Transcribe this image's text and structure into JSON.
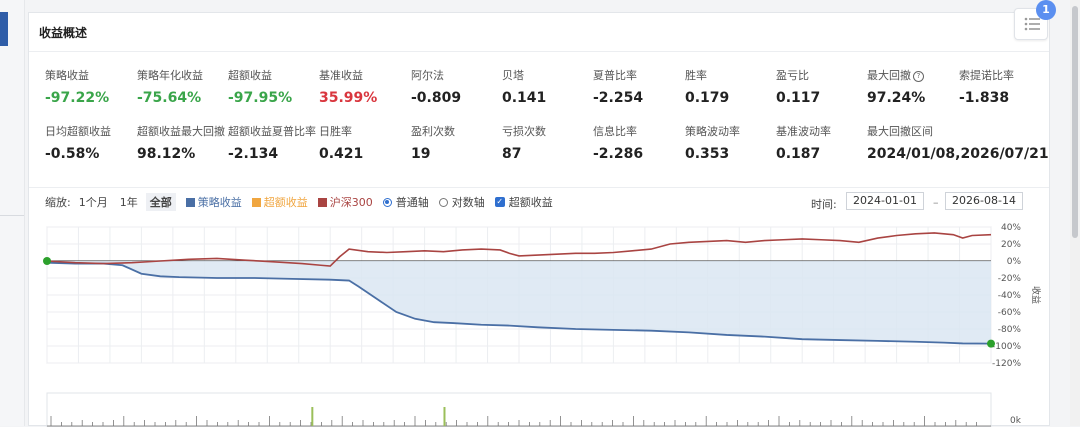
{
  "panel": {
    "title": "收益概述"
  },
  "metrics_row1": [
    {
      "label": "策略收益",
      "value": "-97.22%",
      "tone": "green"
    },
    {
      "label": "策略年化收益",
      "value": "-75.64%",
      "tone": "green"
    },
    {
      "label": "超额收益",
      "value": "-97.95%",
      "tone": "green"
    },
    {
      "label": "基准收益",
      "value": "35.99%",
      "tone": "red"
    },
    {
      "label": "阿尔法",
      "value": "-0.809",
      "tone": ""
    },
    {
      "label": "贝塔",
      "value": "0.141",
      "tone": ""
    },
    {
      "label": "夏普比率",
      "value": "-2.254",
      "tone": ""
    },
    {
      "label": "胜率",
      "value": "0.179",
      "tone": ""
    },
    {
      "label": "盈亏比",
      "value": "0.117",
      "tone": ""
    },
    {
      "label": "最大回撤",
      "value": "97.24%",
      "tone": "",
      "help": true
    },
    {
      "label": "索提诺比率",
      "value": "-1.838",
      "tone": ""
    }
  ],
  "metrics_row2": [
    {
      "label": "日均超额收益",
      "value": "-0.58%"
    },
    {
      "label": "超额收益最大回撤",
      "value": "98.12%"
    },
    {
      "label": "超额收益夏普比率",
      "value": "-2.134"
    },
    {
      "label": "日胜率",
      "value": "0.421"
    },
    {
      "label": "盈利次数",
      "value": "19"
    },
    {
      "label": "亏损次数",
      "value": "87"
    },
    {
      "label": "信息比率",
      "value": "-2.286"
    },
    {
      "label": "策略波动率",
      "value": "0.353"
    },
    {
      "label": "基准波动率",
      "value": "0.187"
    },
    {
      "label": "最大回撤区间",
      "value": "2024/01/08,2026/07/21"
    }
  ],
  "toolbar": {
    "zoom_label": "缩放:",
    "zoom_1m": "1个月",
    "zoom_1y": "1年",
    "zoom_all": "全部",
    "legend_strategy": "策略收益",
    "legend_excess": "超额收益",
    "legend_benchmark": "沪深300",
    "axis_normal": "普通轴",
    "axis_log": "对数轴",
    "excess_toggle": "超额收益",
    "time_label": "时间:",
    "date_start": "2024-01-01",
    "date_end": "2026-08-14"
  },
  "badge": {
    "count": "1"
  },
  "colors": {
    "strategy": "#4a6fa5",
    "excess": "#f0a640",
    "benchmark": "#a94442",
    "accent": "#2f6fcf"
  },
  "chart_data": {
    "type": "line",
    "y_ticks": [
      "40%",
      "20%",
      "0%",
      "-20%",
      "-40%",
      "-60%",
      "-80%",
      "-100%",
      "-120%"
    ],
    "ylim": [
      -120,
      40
    ],
    "ylabel": "收益",
    "xlim": [
      0,
      100
    ],
    "series": [
      {
        "name": "沪深300",
        "points": [
          [
            0,
            0
          ],
          [
            3,
            -2
          ],
          [
            6,
            -3
          ],
          [
            9,
            -2
          ],
          [
            12,
            0
          ],
          [
            15,
            2
          ],
          [
            18,
            3
          ],
          [
            21,
            1
          ],
          [
            24,
            -1
          ],
          [
            27,
            -3
          ],
          [
            29,
            -5
          ],
          [
            30,
            -6
          ],
          [
            31,
            5
          ],
          [
            32,
            14
          ],
          [
            34,
            11
          ],
          [
            36,
            10
          ],
          [
            38,
            11
          ],
          [
            40,
            12
          ],
          [
            42,
            11
          ],
          [
            44,
            13
          ],
          [
            46,
            14
          ],
          [
            48,
            13
          ],
          [
            49,
            9
          ],
          [
            50,
            6
          ],
          [
            52,
            7
          ],
          [
            54,
            8
          ],
          [
            56,
            9
          ],
          [
            58,
            9
          ],
          [
            60,
            10
          ],
          [
            62,
            12
          ],
          [
            64,
            14
          ],
          [
            66,
            20
          ],
          [
            68,
            22
          ],
          [
            70,
            23
          ],
          [
            72,
            24
          ],
          [
            74,
            22
          ],
          [
            76,
            24
          ],
          [
            78,
            25
          ],
          [
            80,
            26
          ],
          [
            82,
            25
          ],
          [
            84,
            24
          ],
          [
            86,
            22
          ],
          [
            88,
            27
          ],
          [
            90,
            30
          ],
          [
            92,
            32
          ],
          [
            94,
            33
          ],
          [
            96,
            31
          ],
          [
            97,
            27
          ],
          [
            98,
            30
          ],
          [
            100,
            31
          ]
        ]
      },
      {
        "name": "策略收益",
        "points": [
          [
            0,
            -2
          ],
          [
            3,
            -3
          ],
          [
            6,
            -3
          ],
          [
            8,
            -5
          ],
          [
            10,
            -15
          ],
          [
            12,
            -18
          ],
          [
            14,
            -19
          ],
          [
            18,
            -20
          ],
          [
            22,
            -20
          ],
          [
            26,
            -21
          ],
          [
            30,
            -22
          ],
          [
            32,
            -23
          ],
          [
            33,
            -30
          ],
          [
            35,
            -45
          ],
          [
            37,
            -60
          ],
          [
            39,
            -68
          ],
          [
            41,
            -72
          ],
          [
            43,
            -73
          ],
          [
            46,
            -75
          ],
          [
            49,
            -76
          ],
          [
            52,
            -78
          ],
          [
            56,
            -80
          ],
          [
            60,
            -81
          ],
          [
            64,
            -82
          ],
          [
            68,
            -84
          ],
          [
            72,
            -87
          ],
          [
            76,
            -89
          ],
          [
            80,
            -92
          ],
          [
            84,
            -93
          ],
          [
            88,
            -94
          ],
          [
            92,
            -95
          ],
          [
            95,
            -96
          ],
          [
            97,
            -97
          ],
          [
            100,
            -97.2
          ]
        ]
      }
    ],
    "markers": [
      {
        "series": "策略收益",
        "x": 0,
        "y": 0,
        "color": "#2ca02c"
      },
      {
        "series": "策略收益",
        "x": 100,
        "y": -97.2,
        "color": "#2ca02c"
      }
    ],
    "volume_ticks": [
      "0k"
    ],
    "volume_spikes": [
      28,
      42
    ]
  }
}
